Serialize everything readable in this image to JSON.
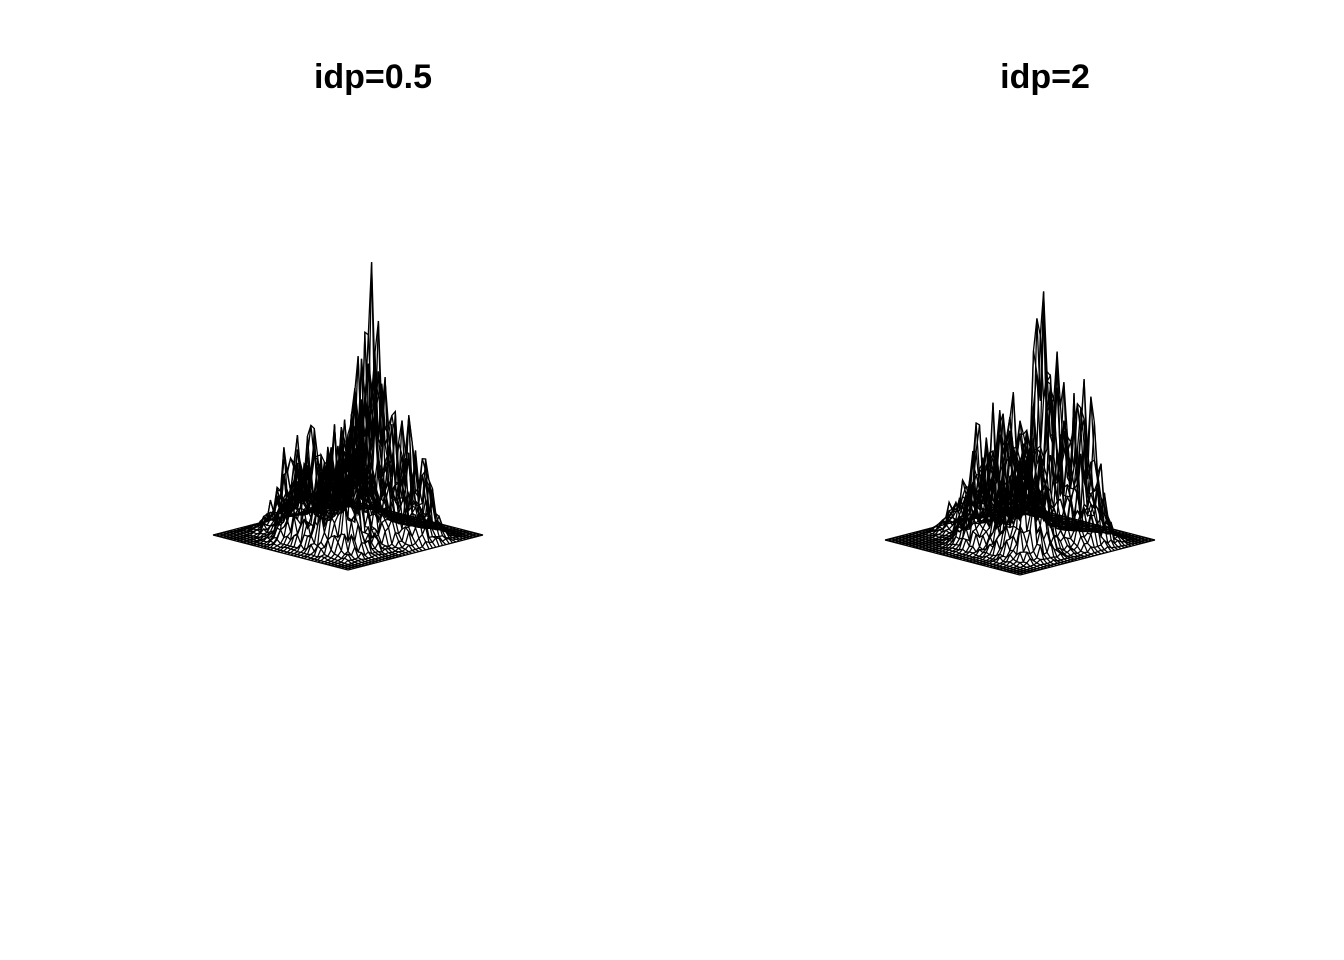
{
  "chart_data": [
    {
      "type": "surface",
      "title": "idp=0.5",
      "grid": false,
      "axes": "none",
      "style": "wireframe",
      "color": "#000000",
      "peaks": [
        {
          "u": 0.62,
          "v": 0.45,
          "h": 1.0
        },
        {
          "u": 0.3,
          "v": 0.3,
          "h": 0.52
        },
        {
          "u": 0.85,
          "v": 0.35,
          "h": 0.45
        },
        {
          "u": 0.45,
          "v": 0.75,
          "h": 0.42
        },
        {
          "u": 0.2,
          "v": 0.6,
          "h": 0.36
        },
        {
          "u": 0.7,
          "v": 0.75,
          "h": 0.5
        }
      ]
    },
    {
      "type": "surface",
      "title": "idp=2",
      "grid": false,
      "axes": "none",
      "style": "wireframe",
      "color": "#000000",
      "peaks": [
        {
          "u": 0.63,
          "v": 0.45,
          "h": 1.0
        },
        {
          "u": 0.28,
          "v": 0.35,
          "h": 0.62
        },
        {
          "u": 0.82,
          "v": 0.32,
          "h": 0.55
        },
        {
          "u": 0.45,
          "v": 0.7,
          "h": 0.58
        },
        {
          "u": 0.12,
          "v": 0.55,
          "h": 0.25
        },
        {
          "u": 0.75,
          "v": 0.7,
          "h": 0.6
        }
      ]
    }
  ]
}
